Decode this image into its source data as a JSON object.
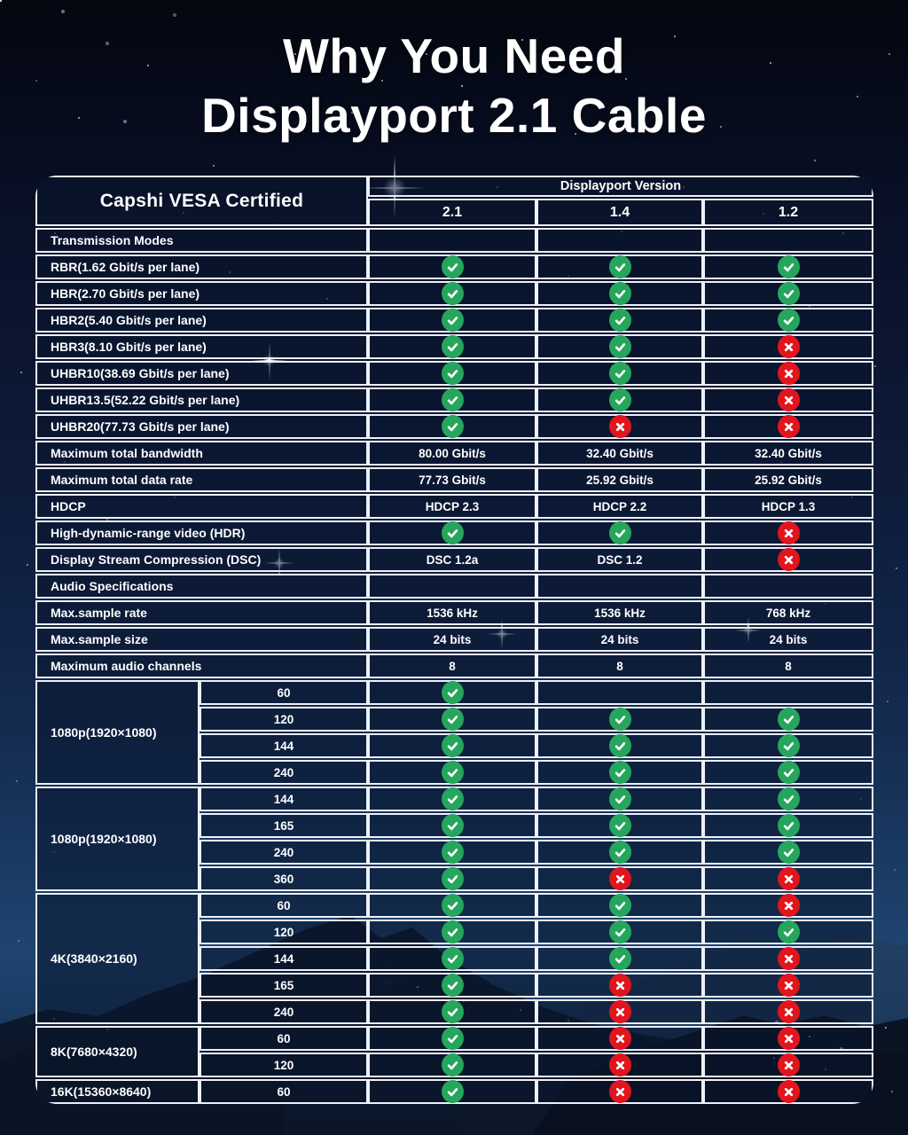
{
  "title": {
    "line1": "Why You Need",
    "line2": "Displayport 2.1 Cable"
  },
  "icons": {
    "check_icon": "✔",
    "cross_icon": "✖"
  },
  "colors": {
    "check_green": "#26a55c",
    "cross_red": "#e2141d",
    "cell_border": "#eef0f8",
    "cell_background": "rgba(10,22,46,0.55)",
    "text": "#ffffff",
    "sky_top": "#04070f",
    "sky_bottom": "#0f2244"
  },
  "chart_data": {
    "type": "table",
    "title": "Why You Need Displayport 2.1 Cable",
    "corner_header": "Capshi VESA Certified",
    "column_group_header": "Displayport Version",
    "version_columns": [
      "2.1",
      "1.4",
      "1.2"
    ],
    "spec_rows": [
      {
        "kind": "section",
        "label": "Transmission Modes",
        "cells": [
          "blank",
          "blank",
          "blank"
        ]
      },
      {
        "kind": "row",
        "label": "RBR(1.62 Gbit/s per lane)",
        "cells": [
          "check",
          "check",
          "check"
        ]
      },
      {
        "kind": "row",
        "label": "HBR(2.70 Gbit/s per lane)",
        "cells": [
          "check",
          "check",
          "check"
        ]
      },
      {
        "kind": "row",
        "label": "HBR2(5.40 Gbit/s per lane)",
        "cells": [
          "check",
          "check",
          "check"
        ]
      },
      {
        "kind": "row",
        "label": "HBR3(8.10 Gbit/s per lane)",
        "cells": [
          "check",
          "check",
          "cross"
        ]
      },
      {
        "kind": "row",
        "label": "UHBR10(38.69 Gbit/s per lane)",
        "cells": [
          "check",
          "check",
          "cross"
        ]
      },
      {
        "kind": "row",
        "label": "UHBR13.5(52.22 Gbit/s per lane)",
        "cells": [
          "check",
          "check",
          "cross"
        ]
      },
      {
        "kind": "row",
        "label": "UHBR20(77.73 Gbit/s per lane)",
        "cells": [
          "check",
          "cross",
          "cross"
        ]
      },
      {
        "kind": "row",
        "label": "Maximum total bandwidth",
        "cells": [
          "80.00 Gbit/s",
          "32.40 Gbit/s",
          "32.40 Gbit/s"
        ]
      },
      {
        "kind": "row",
        "label": "Maximum total data rate",
        "cells": [
          "77.73 Gbit/s",
          "25.92 Gbit/s",
          "25.92 Gbit/s"
        ]
      },
      {
        "kind": "row",
        "label": "HDCP",
        "cells": [
          "HDCP 2.3",
          "HDCP 2.2",
          "HDCP 1.3"
        ]
      },
      {
        "kind": "row",
        "label": "High-dynamic-range video (HDR)",
        "cells": [
          "check",
          "check",
          "cross"
        ]
      },
      {
        "kind": "row",
        "label": "Display Stream Compression (DSC)",
        "cells": [
          "DSC 1.2a",
          "DSC 1.2",
          "cross"
        ]
      },
      {
        "kind": "section",
        "label": "Audio Specifications",
        "cells": [
          "blank",
          "blank",
          "blank"
        ]
      },
      {
        "kind": "row",
        "label": "Max.sample rate",
        "cells": [
          "1536 kHz",
          "1536 kHz",
          "768 kHz"
        ]
      },
      {
        "kind": "row",
        "label": "Max.sample size",
        "cells": [
          "24 bits",
          "24 bits",
          "24 bits"
        ]
      },
      {
        "kind": "row",
        "label": "Maximum audio channels",
        "cells": [
          "8",
          "8",
          "8"
        ]
      }
    ],
    "resolution_groups": [
      {
        "label": "1080p(1920×1080)",
        "rows": [
          {
            "rate": "60",
            "cells": [
              "check",
              "blank",
              "blank"
            ]
          },
          {
            "rate": "120",
            "cells": [
              "check",
              "check",
              "check"
            ]
          },
          {
            "rate": "144",
            "cells": [
              "check",
              "check",
              "check"
            ]
          },
          {
            "rate": "240",
            "cells": [
              "check",
              "check",
              "check"
            ]
          }
        ]
      },
      {
        "label": "1080p(1920×1080)",
        "rows": [
          {
            "rate": "144",
            "cells": [
              "check",
              "check",
              "check"
            ]
          },
          {
            "rate": "165",
            "cells": [
              "check",
              "check",
              "check"
            ]
          },
          {
            "rate": "240",
            "cells": [
              "check",
              "check",
              "check"
            ]
          },
          {
            "rate": "360",
            "cells": [
              "check",
              "cross",
              "cross"
            ]
          }
        ]
      },
      {
        "label": "4K(3840×2160)",
        "rows": [
          {
            "rate": "60",
            "cells": [
              "check",
              "check",
              "cross"
            ]
          },
          {
            "rate": "120",
            "cells": [
              "check",
              "check",
              "check"
            ]
          },
          {
            "rate": "144",
            "cells": [
              "check",
              "check",
              "cross"
            ]
          },
          {
            "rate": "165",
            "cells": [
              "check",
              "cross",
              "cross"
            ]
          },
          {
            "rate": "240",
            "cells": [
              "check",
              "cross",
              "cross"
            ]
          }
        ]
      },
      {
        "label": "8K(7680×4320)",
        "rows": [
          {
            "rate": "60",
            "cells": [
              "check",
              "cross",
              "cross"
            ]
          },
          {
            "rate": "120",
            "cells": [
              "check",
              "cross",
              "cross"
            ]
          }
        ]
      },
      {
        "label": "16K(15360×8640)",
        "rows": [
          {
            "rate": "60",
            "cells": [
              "check",
              "cross",
              "cross"
            ]
          }
        ]
      }
    ]
  }
}
